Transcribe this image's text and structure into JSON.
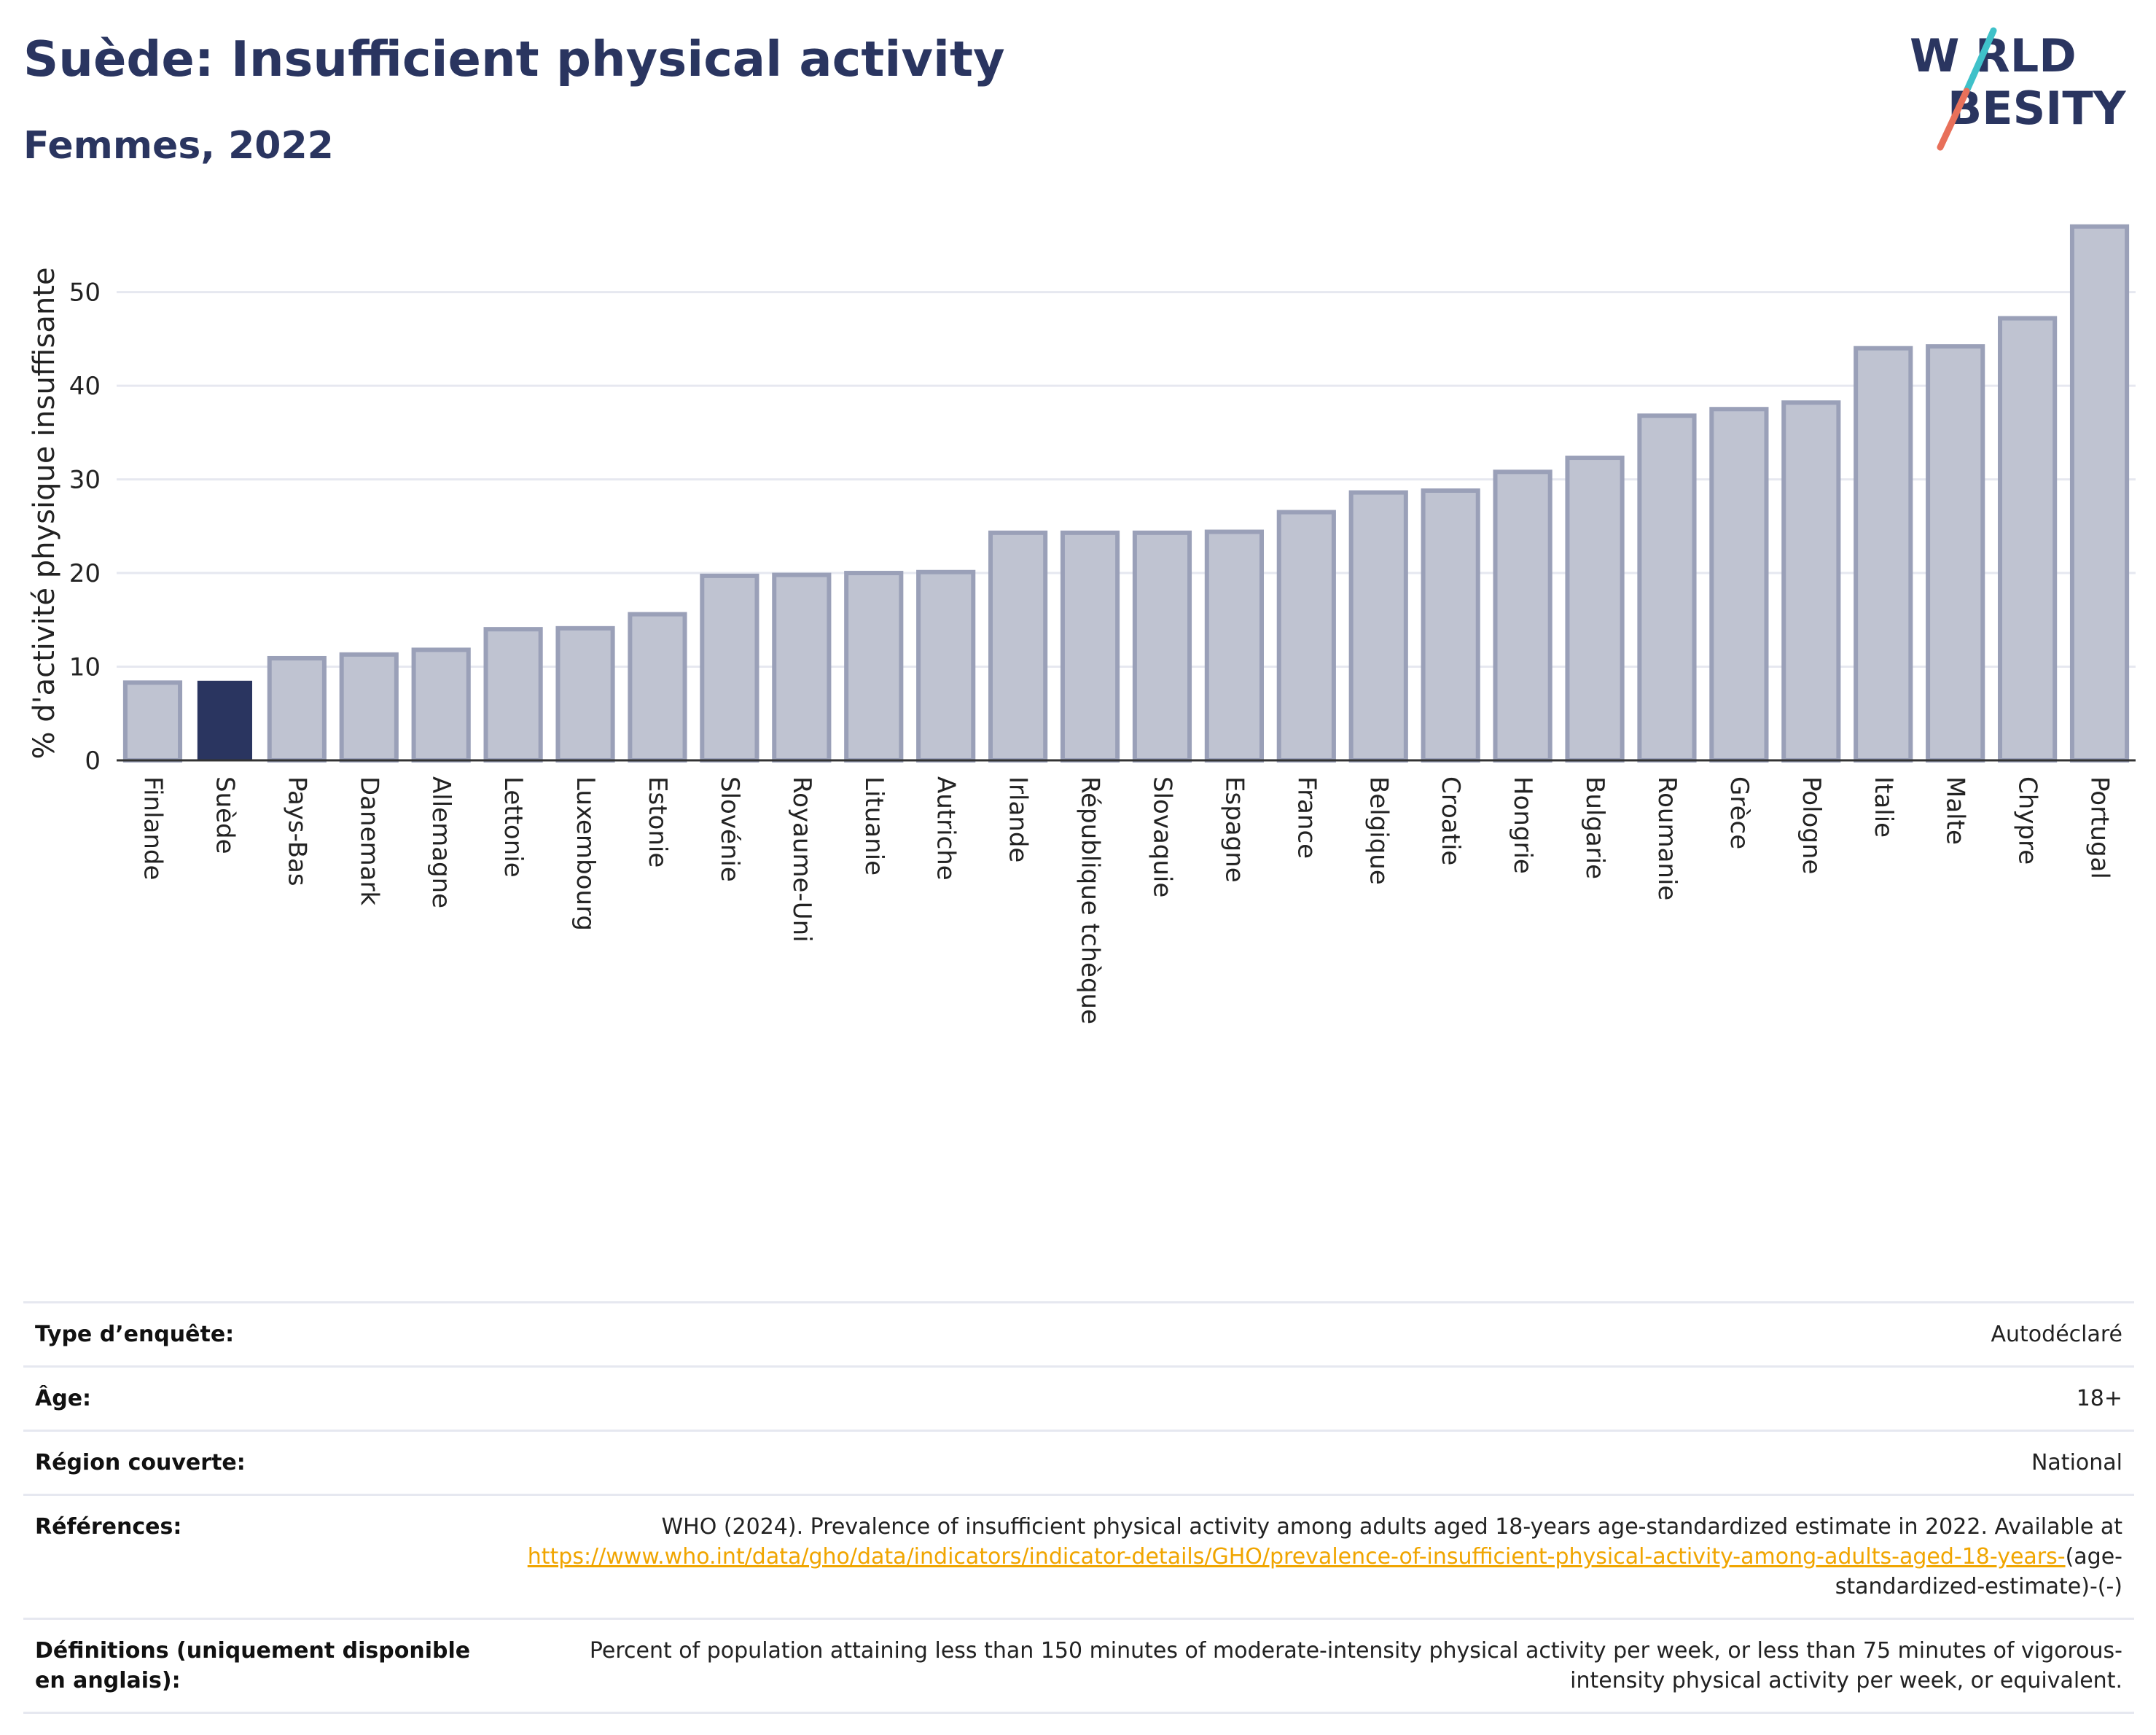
{
  "header": {
    "title": "Suède: Insufficient physical activity",
    "subtitle": "Femmes, 2022"
  },
  "logo": {
    "line1": "W RLD",
    "line2": "BESITY",
    "colors": {
      "text": "#2a3560",
      "slash_top": "#3fc1c9",
      "slash_bottom": "#e8705a"
    }
  },
  "colors": {
    "highlight": "#2a3560",
    "bar_fill": "#bfc3d1",
    "bar_stroke": "#9aa0b8",
    "grid": "#e6e8f0",
    "axis": "#333333",
    "link": "#f0a500"
  },
  "chart_data": {
    "type": "bar",
    "title": "Suède: Insufficient physical activity",
    "subtitle": "Femmes, 2022",
    "xlabel": "",
    "ylabel": "% d'activité physique insuffisante",
    "ylim": [
      0,
      59
    ],
    "yticks": [
      0,
      10,
      20,
      30,
      40,
      50
    ],
    "grid": true,
    "highlight": "Suède",
    "categories": [
      "Finlande",
      "Suède",
      "Pays-Bas",
      "Danemark",
      "Allemagne",
      "Lettonie",
      "Luxembourg",
      "Estonie",
      "Slovénie",
      "Royaume-Uni",
      "Lituanie",
      "Autriche",
      "Irlande",
      "République tchèque",
      "Slovaquie",
      "Espagne",
      "France",
      "Belgique",
      "Croatie",
      "Hongrie",
      "Bulgarie",
      "Roumanie",
      "Grèce",
      "Pologne",
      "Italie",
      "Malte",
      "Chypre",
      "Portugal"
    ],
    "values": [
      8.3,
      8.5,
      10.9,
      11.3,
      11.8,
      14.0,
      14.1,
      15.6,
      19.7,
      19.8,
      20.0,
      20.1,
      24.3,
      24.3,
      24.3,
      24.4,
      26.5,
      28.6,
      28.8,
      30.8,
      32.3,
      36.8,
      37.5,
      38.2,
      44.0,
      44.2,
      47.2,
      57.0
    ]
  },
  "info": [
    {
      "label": "Type d’enquête:",
      "value": "Autodéclaré"
    },
    {
      "label": "Âge:",
      "value": "18+"
    },
    {
      "label": "Région couverte:",
      "value": "National"
    },
    {
      "label": "Références:",
      "value": "WHO (2024). Prevalence of insufficient physical activity among adults aged 18-years age-standardized estimate in 2022. Available at",
      "link": "https://www.who.int/data/gho/data/indicators/indicator-details/GHO/prevalence-of-insufficient-physical-activity-among-adults-aged-18-years-",
      "suffix": "(age-standardized-estimate)-(-)"
    },
    {
      "label": "Définitions (uniquement disponible en anglais):",
      "value": "Percent of population attaining less than 150 minutes of moderate-intensity physical activity per week, or less than 75 minutes of vigorous-intensity physical activity per week, or equivalent."
    }
  ]
}
